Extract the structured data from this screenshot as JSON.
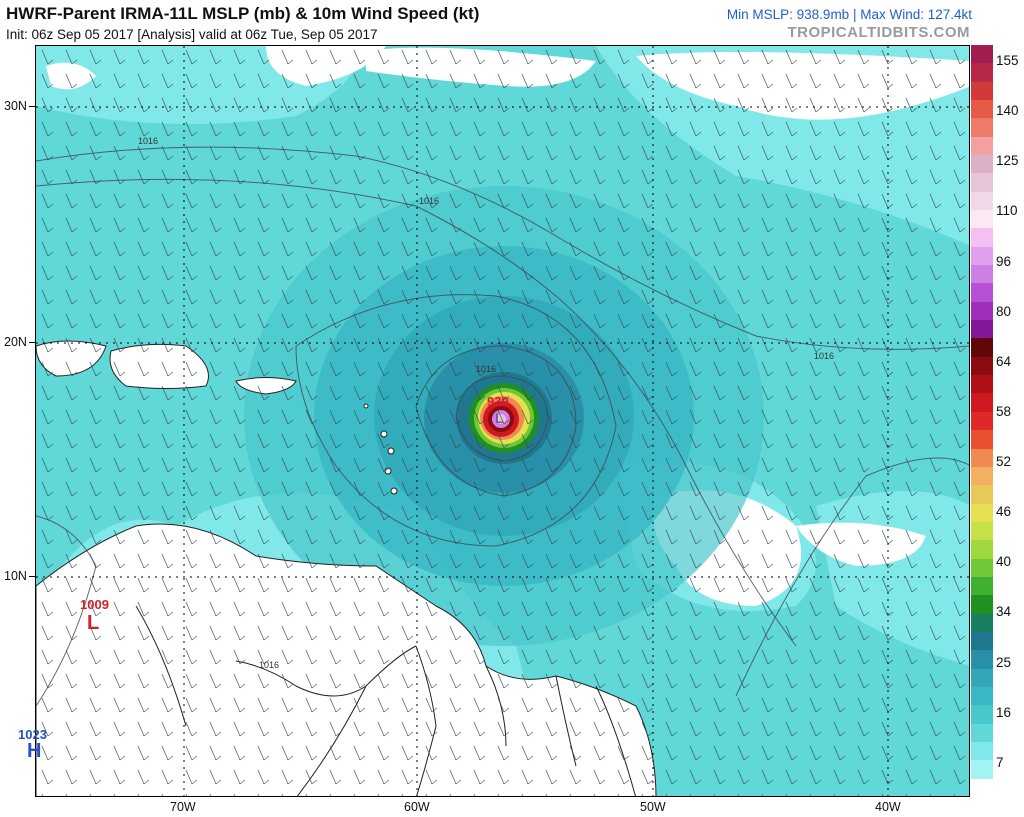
{
  "header": {
    "title": "HWRF-Parent IRMA-11L MSLP (mb) & 10m Wind Speed (kt)",
    "subtitle": "Init: 06z Sep 05 2017  [Analysis]   valid at 06z Tue, Sep 05 2017",
    "stats": "Min MSLP: 938.9mb  |  Max Wind: 127.4kt",
    "brand": "TROPICALTIDBITS.COM"
  },
  "map": {
    "lat_labels": [
      "30N",
      "20N",
      "10N"
    ],
    "lon_labels": [
      "70W",
      "60W",
      "50W",
      "40W"
    ],
    "isobar_label": "1016",
    "centers": [
      {
        "kind": "L",
        "pressure": "939",
        "color": "#d0202a"
      },
      {
        "kind": "L",
        "pressure": "1009",
        "color": "#d0202a"
      },
      {
        "kind": "H",
        "pressure": "1023",
        "color": "#2a4fc4"
      }
    ]
  },
  "colorbar": {
    "labels": [
      "155",
      "140",
      "125",
      "110",
      "96",
      "80",
      "64",
      "58",
      "52",
      "46",
      "40",
      "34",
      "25",
      "16",
      "7"
    ],
    "colors": [
      "#a01e50",
      "#b82848",
      "#d23a3a",
      "#e85a48",
      "#f07a68",
      "#f4a0a0",
      "#dcb0c8",
      "#e8c4d8",
      "#f0d8e8",
      "#fae8f4",
      "#f4c0f4",
      "#e0a0ec",
      "#cc80e4",
      "#b850d4",
      "#a030bc",
      "#801898",
      "#600808",
      "#8c0a10",
      "#b01018",
      "#d01820",
      "#e02828",
      "#e85030",
      "#f08a50",
      "#f4b060",
      "#e8c858",
      "#e4e050",
      "#c8e048",
      "#a0d840",
      "#70c838",
      "#40b030",
      "#209020",
      "#188060",
      "#207890",
      "#2890a8",
      "#30a8b8",
      "#38b8c4",
      "#48c8cc",
      "#60d8d8",
      "#80e8e8",
      "#a0f4f4",
      "#ffffff"
    ]
  }
}
